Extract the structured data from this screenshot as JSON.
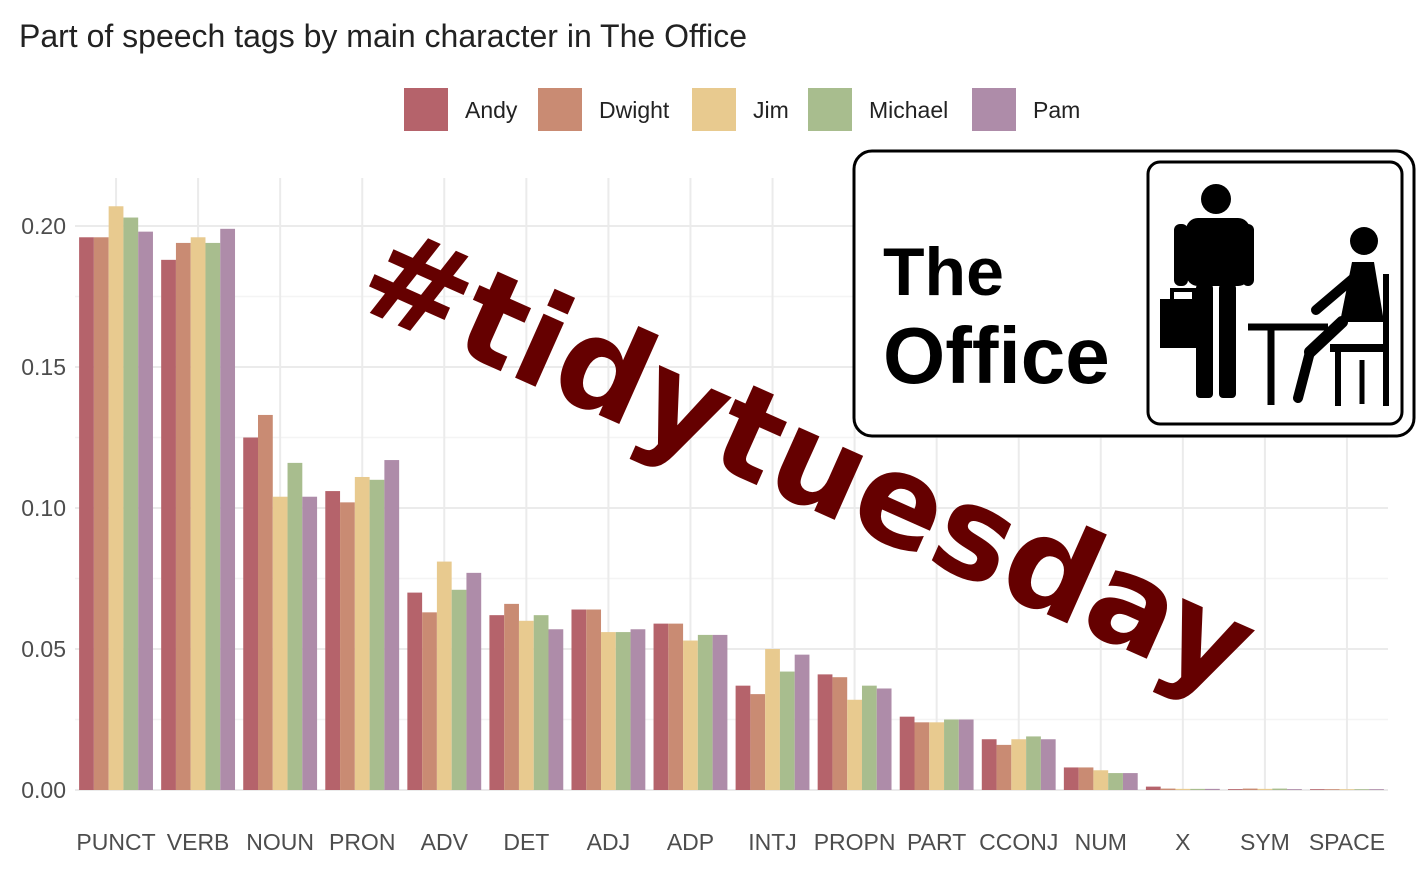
{
  "chart_data": {
    "type": "bar",
    "title": "Part of speech tags by main character in The Office",
    "xlabel": "",
    "ylabel": "",
    "ylim": [
      0,
      0.22
    ],
    "yticks": [
      "0.00",
      "0.05",
      "0.10",
      "0.15",
      "0.20"
    ],
    "grid": true,
    "legend_position": "top",
    "categories": [
      "PUNCT",
      "VERB",
      "NOUN",
      "PRON",
      "ADV",
      "DET",
      "ADJ",
      "ADP",
      "INTJ",
      "PROPN",
      "PART",
      "CCONJ",
      "NUM",
      "X",
      "SYM",
      "SPACE"
    ],
    "series": [
      {
        "name": "Andy",
        "color": "#b5636b",
        "values": [
          0.196,
          0.188,
          0.125,
          0.106,
          0.07,
          0.062,
          0.064,
          0.059,
          0.037,
          0.041,
          0.026,
          0.018,
          0.008,
          0.0012,
          0.0003,
          0.0002
        ]
      },
      {
        "name": "Dwight",
        "color": "#c98b73",
        "values": [
          0.196,
          0.194,
          0.133,
          0.102,
          0.063,
          0.066,
          0.064,
          0.059,
          0.034,
          0.04,
          0.024,
          0.016,
          0.008,
          0.0005,
          0.0005,
          0.0002
        ]
      },
      {
        "name": "Jim",
        "color": "#e8ca8f",
        "values": [
          0.207,
          0.196,
          0.104,
          0.111,
          0.081,
          0.06,
          0.056,
          0.053,
          0.05,
          0.032,
          0.024,
          0.018,
          0.007,
          0.0004,
          0.0004,
          0.0002
        ]
      },
      {
        "name": "Michael",
        "color": "#a8bd8e",
        "values": [
          0.203,
          0.194,
          0.116,
          0.11,
          0.071,
          0.062,
          0.056,
          0.055,
          0.042,
          0.037,
          0.025,
          0.019,
          0.006,
          0.0004,
          0.0005,
          0.0002
        ]
      },
      {
        "name": "Pam",
        "color": "#ae8ca9",
        "values": [
          0.198,
          0.199,
          0.104,
          0.117,
          0.077,
          0.057,
          0.057,
          0.055,
          0.048,
          0.036,
          0.025,
          0.018,
          0.006,
          0.0004,
          0.0003,
          0.0002
        ]
      }
    ]
  },
  "overlay": {
    "hashtag": "#tidytuesday",
    "hashtag_color": "#650000",
    "logo_line1": "The",
    "logo_line2": "Office"
  }
}
